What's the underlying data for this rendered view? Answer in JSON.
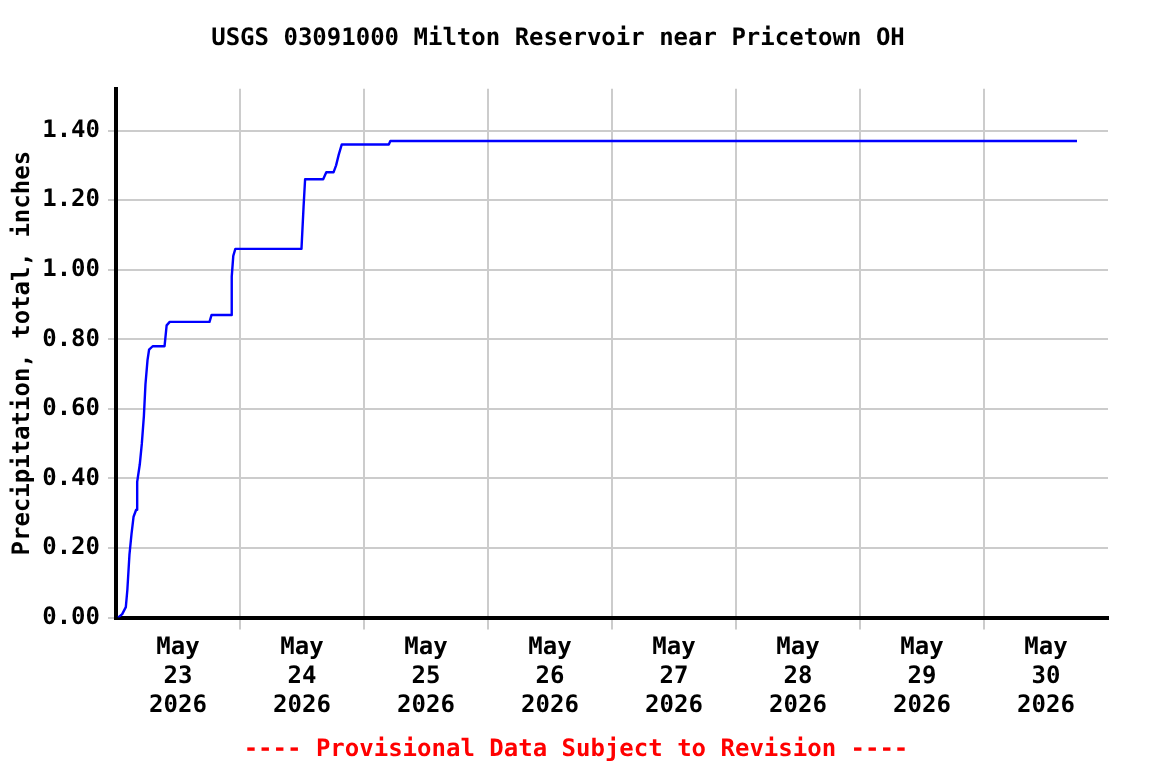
{
  "chart_data": {
    "type": "line",
    "title": "USGS 03091000 Milton Reservoir near Pricetown OH",
    "ylabel": "Precipitation, total, inches",
    "annotations": [
      "---- Provisional Data Subject to Revision ----"
    ],
    "x": [
      "2026-05-23T00:24",
      "2026-05-23T01:12",
      "2026-05-23T01:54",
      "2026-05-23T02:12",
      "2026-05-23T02:36",
      "2026-05-23T03:00",
      "2026-05-23T03:24",
      "2026-05-23T03:54",
      "2026-05-23T04:06",
      "2026-05-23T04:36",
      "2026-05-23T05:00",
      "2026-05-23T05:24",
      "2026-05-23T05:42",
      "2026-05-23T06:06",
      "2026-05-23T06:24",
      "2026-05-23T07:06",
      "2026-05-23T09:24",
      "2026-05-23T09:48",
      "2026-05-23T10:24",
      "2026-05-23T12:06",
      "2026-05-23T18:06",
      "2026-05-23T18:30",
      "2026-05-23T22:12",
      "2026-05-23T22:24",
      "2026-05-23T22:42",
      "2026-05-23T23:06",
      "2026-05-24T11:54",
      "2026-05-24T12:18",
      "2026-05-24T12:36",
      "2026-05-24T16:06",
      "2026-05-24T16:42",
      "2026-05-24T18:06",
      "2026-05-24T18:36",
      "2026-05-24T19:06",
      "2026-05-24T19:42",
      "2026-05-25T04:48",
      "2026-05-25T05:06",
      "2026-05-30T18:00"
    ],
    "series": [
      {
        "color": "#0000ff",
        "values": [
          0.0,
          0.01,
          0.03,
          0.08,
          0.18,
          0.24,
          0.29,
          0.31,
          0.39,
          0.44,
          0.5,
          0.58,
          0.67,
          0.74,
          0.77,
          0.78,
          0.78,
          0.84,
          0.85,
          0.85,
          0.85,
          0.87,
          0.87,
          0.98,
          1.04,
          1.06,
          1.06,
          1.18,
          1.26,
          1.26,
          1.28,
          1.28,
          1.3,
          1.33,
          1.36,
          1.36,
          1.37,
          1.37
        ]
      }
    ],
    "xlim": [
      "2026-05-23T00:00",
      "2026-05-31T00:00"
    ],
    "xticks": [
      {
        "value": "2026-05-23T12:00",
        "label": "May\n23\n2026"
      },
      {
        "value": "2026-05-24T00:00",
        "label": null
      },
      {
        "value": "2026-05-24T12:00",
        "label": "May\n24\n2026"
      },
      {
        "value": "2026-05-25T00:00",
        "label": null
      },
      {
        "value": "2026-05-25T12:00",
        "label": "May\n25\n2026"
      },
      {
        "value": "2026-05-26T00:00",
        "label": null
      },
      {
        "value": "2026-05-26T12:00",
        "label": "May\n26\n2026"
      },
      {
        "value": "2026-05-27T00:00",
        "label": null
      },
      {
        "value": "2026-05-27T12:00",
        "label": "May\n27\n2026"
      },
      {
        "value": "2026-05-28T00:00",
        "label": null
      },
      {
        "value": "2026-05-28T12:00",
        "label": "May\n28\n2026"
      },
      {
        "value": "2026-05-29T00:00",
        "label": null
      },
      {
        "value": "2026-05-29T12:00",
        "label": "May\n29\n2026"
      },
      {
        "value": "2026-05-30T00:00",
        "label": null
      },
      {
        "value": "2026-05-30T12:00",
        "label": "May\n30\n2026"
      }
    ],
    "ylim": [
      0,
      1.52
    ],
    "yticks": [
      {
        "value": 0,
        "label": "0.00"
      },
      {
        "value": 0.2,
        "label": "0.20"
      },
      {
        "value": 0.4,
        "label": "0.40"
      },
      {
        "value": 0.6,
        "label": "0.60"
      },
      {
        "value": 0.8,
        "label": "0.80"
      },
      {
        "value": 1.0,
        "label": "1.00"
      },
      {
        "value": 1.2,
        "label": "1.20"
      },
      {
        "value": 1.4,
        "label": "1.40"
      }
    ],
    "grid": true,
    "legend": false,
    "marker": "none",
    "line_style": "solid"
  }
}
